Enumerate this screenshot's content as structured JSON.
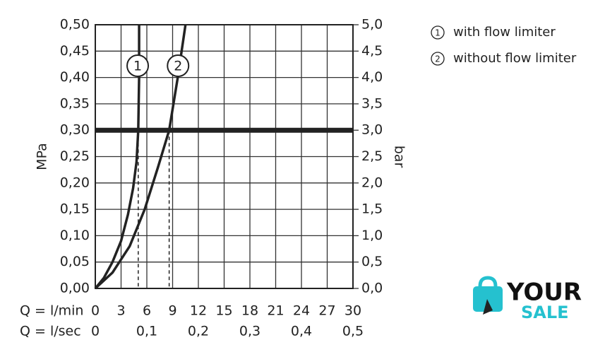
{
  "chart_data": {
    "type": "line",
    "xlabel": "Q = l/min",
    "x2label": "Q = l/sec",
    "ylabel": "MPa",
    "y2label": "bar",
    "xlim": [
      0,
      30
    ],
    "xticks": [
      0,
      3,
      6,
      9,
      12,
      15,
      18,
      21,
      24,
      27,
      30
    ],
    "x2lim": [
      0,
      0.5
    ],
    "x2ticks": [
      0,
      {
        "value": 0.1,
        "label": "0,1"
      },
      {
        "value": 0.2,
        "label": "0,2"
      },
      {
        "value": 0.3,
        "label": "0,3"
      },
      {
        "value": 0.4,
        "label": "0,4"
      },
      {
        "value": 0.5,
        "label": "0,5"
      }
    ],
    "ylim": [
      0,
      0.5
    ],
    "yticks": [
      {
        "value": 0,
        "label": "0,00"
      },
      {
        "value": 0.05,
        "label": "0,05"
      },
      {
        "value": 0.1,
        "label": "0,10"
      },
      {
        "value": 0.15,
        "label": "0,15"
      },
      {
        "value": 0.2,
        "label": "0,20"
      },
      {
        "value": 0.25,
        "label": "0,25"
      },
      {
        "value": 0.3,
        "label": "0,30"
      },
      {
        "value": 0.35,
        "label": "0,35"
      },
      {
        "value": 0.4,
        "label": "0,40"
      },
      {
        "value": 0.45,
        "label": "0,45"
      },
      {
        "value": 0.5,
        "label": "0,50"
      }
    ],
    "y2lim": [
      0,
      5
    ],
    "y2ticks": [
      {
        "value": 0,
        "label": "0,0"
      },
      {
        "value": 0.5,
        "label": "0,5"
      },
      {
        "value": 1,
        "label": "1,0"
      },
      {
        "value": 1.5,
        "label": "1,5"
      },
      {
        "value": 2,
        "label": "2,0"
      },
      {
        "value": 2.5,
        "label": "2,5"
      },
      {
        "value": 3,
        "label": "3,0"
      },
      {
        "value": 3.5,
        "label": "3,5"
      },
      {
        "value": 4,
        "label": "4,0"
      },
      {
        "value": 4.5,
        "label": "4,5"
      },
      {
        "value": 5,
        "label": "5,0"
      }
    ],
    "grid": true,
    "reference_line": 0.3,
    "drop_lines": [
      5.0,
      8.6
    ],
    "series": [
      {
        "name": "with flow limiter",
        "label": "1",
        "color": "#222222",
        "x": [
          0,
          1,
          2,
          3,
          3.8,
          4.4,
          4.8,
          5.0,
          5.1,
          5.1
        ],
        "y": [
          0,
          0.02,
          0.05,
          0.09,
          0.14,
          0.19,
          0.24,
          0.3,
          0.4,
          0.5
        ]
      },
      {
        "name": "without flow limiter",
        "label": "2",
        "color": "#222222",
        "x": [
          0,
          2,
          4,
          5.75,
          7.3,
          8.6,
          9.6,
          10.5
        ],
        "y": [
          0,
          0.03,
          0.08,
          0.15,
          0.23,
          0.3,
          0.4,
          0.5
        ]
      }
    ],
    "watermark": [
      "YOUR",
      "SALE"
    ]
  }
}
